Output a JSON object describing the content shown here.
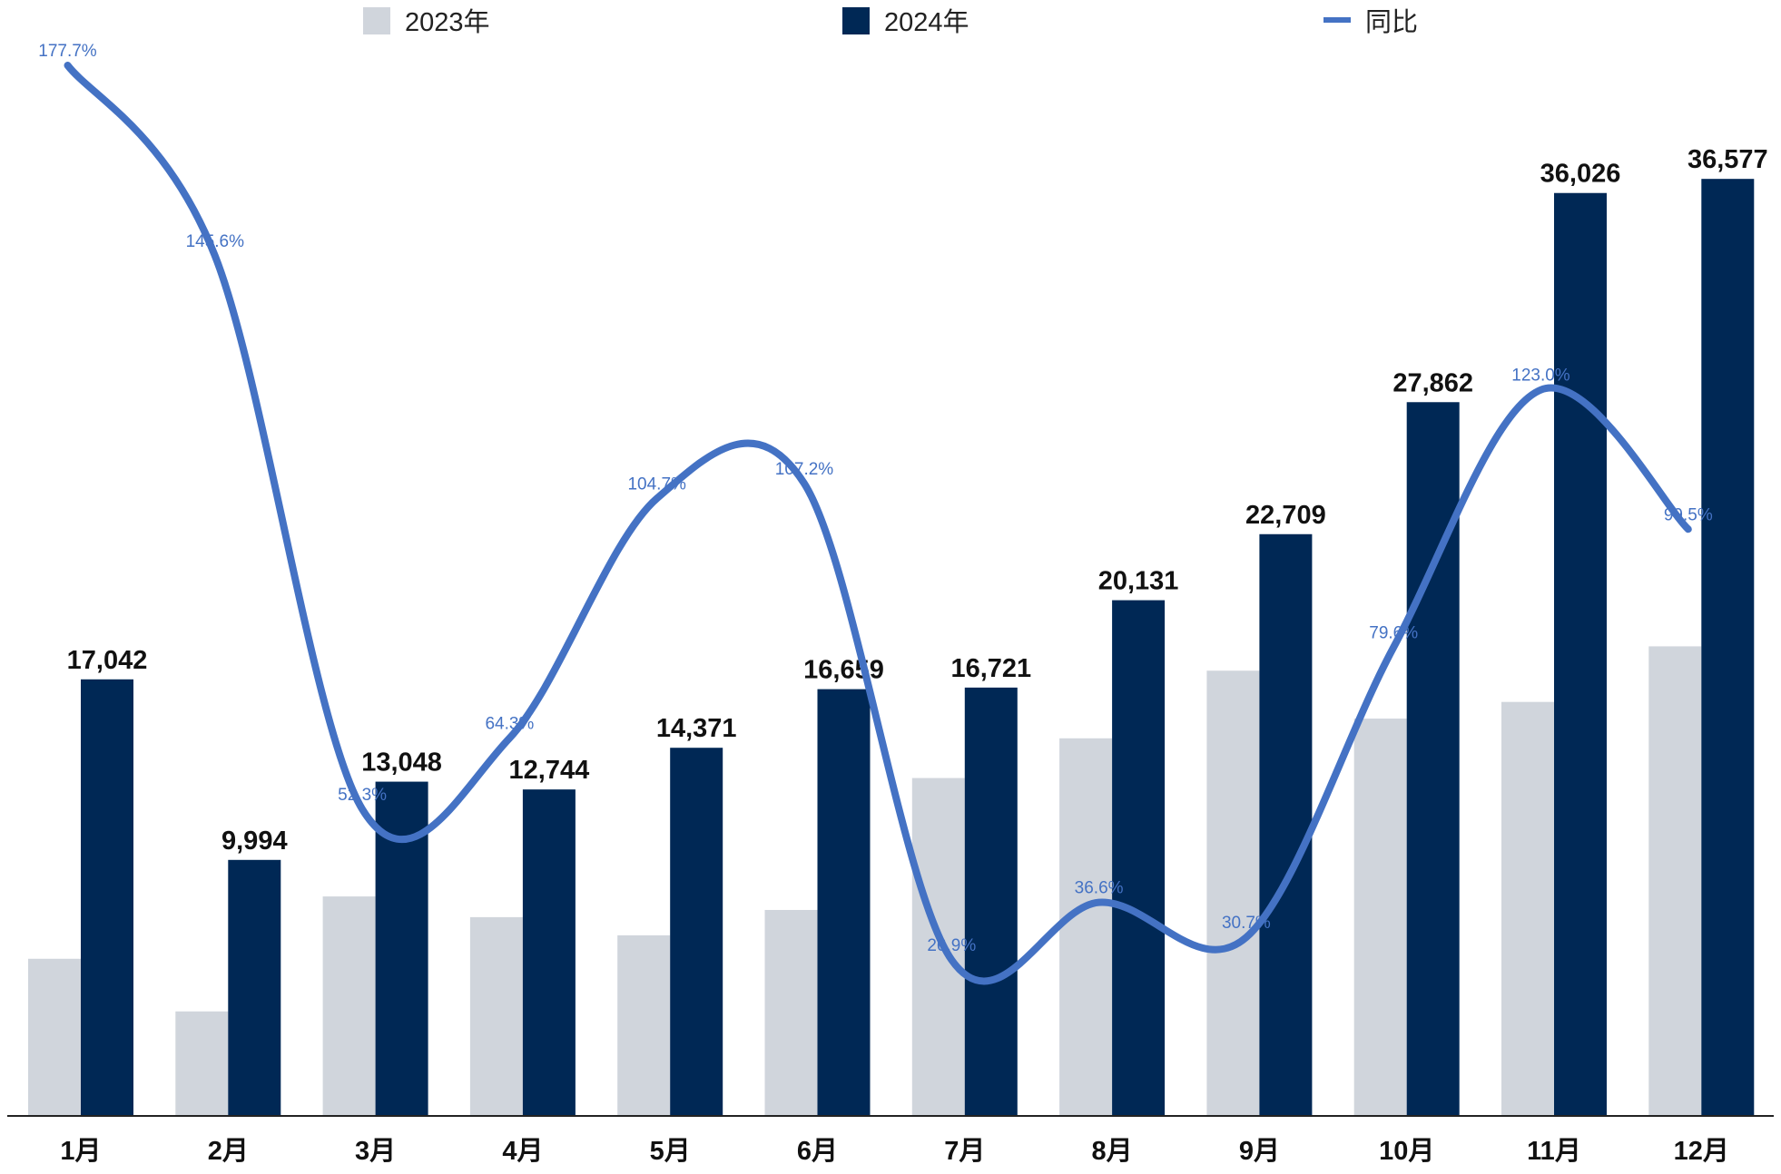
{
  "chart_data": {
    "type": "bar",
    "categories": [
      "1月",
      "2月",
      "3月",
      "4月",
      "5月",
      "6月",
      "7月",
      "8月",
      "9月",
      "10月",
      "11月",
      "12月"
    ],
    "series": [
      {
        "name": "2023年",
        "kind": "bar",
        "color": "#d0d5dc",
        "values": [
          6135,
          4080,
          8568,
          7760,
          7050,
          8040,
          13190,
          14740,
          17380,
          15510,
          16160,
          18330
        ]
      },
      {
        "name": "2024年",
        "kind": "bar",
        "color": "#002855",
        "values": [
          17042,
          9994,
          13048,
          12744,
          14371,
          16659,
          16721,
          20131,
          22709,
          27862,
          36026,
          36577
        ],
        "labels": [
          "17,042",
          "9,994",
          "13,048",
          "12,744",
          "14,371",
          "16,659",
          "16,721",
          "20,131",
          "22,709",
          "27,862",
          "36,026",
          "36,577"
        ]
      },
      {
        "name": "同比",
        "kind": "line",
        "color": "#4472c4",
        "values": [
          177.7,
          145.6,
          52.3,
          64.3,
          104.7,
          107.2,
          26.9,
          36.6,
          30.7,
          79.6,
          123.0,
          99.5
        ],
        "labels": [
          "177.7%",
          "145.6%",
          "52.3%",
          "64.3%",
          "104.7%",
          "107.2%",
          "26.9%",
          "36.6%",
          "30.7%",
          "79.6%",
          "123.0%",
          "99.5%"
        ]
      }
    ],
    "ylim_bars": [
      0,
      38000
    ],
    "ylim_line": [
      0,
      185
    ],
    "grid": false,
    "legend": "top-center"
  }
}
